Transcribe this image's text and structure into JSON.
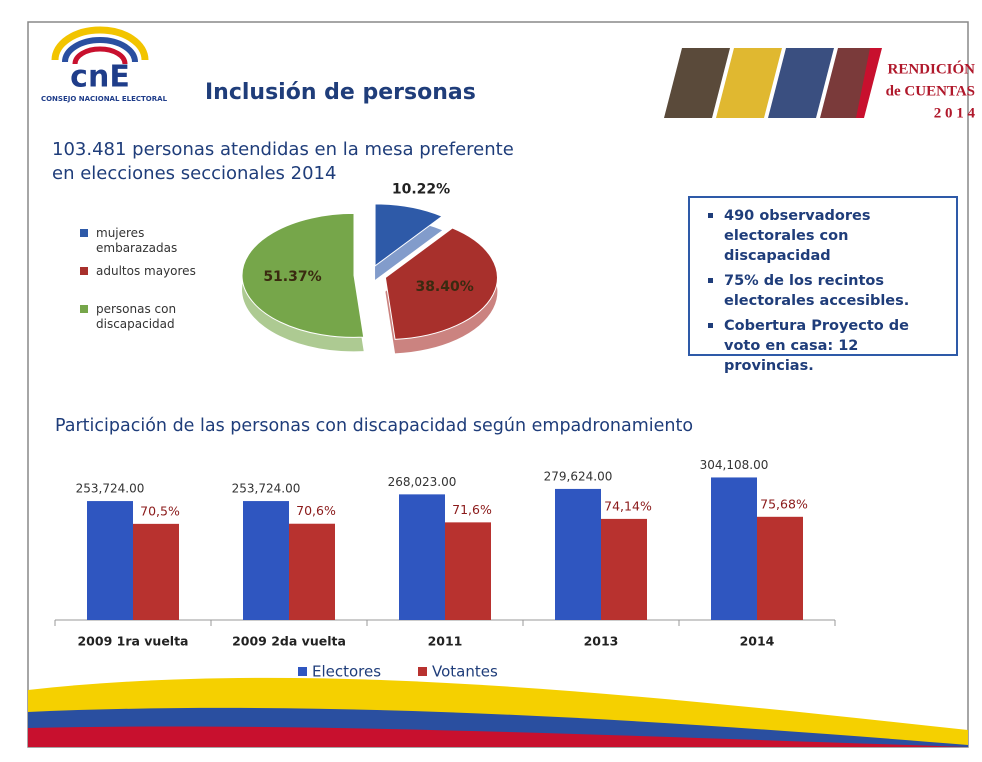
{
  "header": {
    "logo": "cnE",
    "logo_caption": "CONSEJO NACIONAL ELECTORAL",
    "title": "Inclusión de personas",
    "badge": [
      "RENDICIÓN",
      "de CUENTAS",
      "2 0 1 4"
    ]
  },
  "chart_data": [
    {
      "type": "pie",
      "title": [
        "103.481 personas atendidas en la mesa preferente",
        "en elecciones seccionales  2014"
      ],
      "categories": [
        "mujeres embarazadas",
        "adultos mayores",
        "personas con discapacidad"
      ],
      "values": [
        10.22,
        38.4,
        51.37
      ],
      "value_labels": [
        "10.22%",
        "38.40%",
        "51.37%"
      ],
      "colors": [
        "#2e5aa8",
        "#a8302c",
        "#76a64a"
      ],
      "legend": "left"
    },
    {
      "type": "bar",
      "title": "Participación  de las personas con discapacidad según empadronamiento",
      "categories": [
        "2009 1ra vuelta",
        "2009 2da vuelta",
        "2011",
        "2013",
        "2014"
      ],
      "series": [
        {
          "name": "Electores",
          "color": "#2f56c0",
          "values": [
            253724,
            253724,
            268023,
            279624,
            304108
          ],
          "value_labels": [
            "253,724.00",
            "253,724.00",
            "268,023.00",
            "279,624.00",
            "304,108.00"
          ]
        },
        {
          "name": "Votantes",
          "color": "#b8322f",
          "axis": "y2",
          "values": [
            70.5,
            70.6,
            71.6,
            74.14,
            75.68
          ],
          "value_labels": [
            "70,5%",
            "70,6%",
            "71,6%",
            "74,14%",
            "75,68%"
          ]
        }
      ],
      "ylim": [
        0,
        320000
      ],
      "y2lim": [
        0,
        110
      ],
      "legend": "bottom"
    }
  ],
  "info_box": {
    "items": [
      "490 observadores electorales con discapacidad",
      "75% de los recintos electorales accesibles.",
      "Cobertura Proyecto de voto en casa: 12 provincias."
    ]
  }
}
